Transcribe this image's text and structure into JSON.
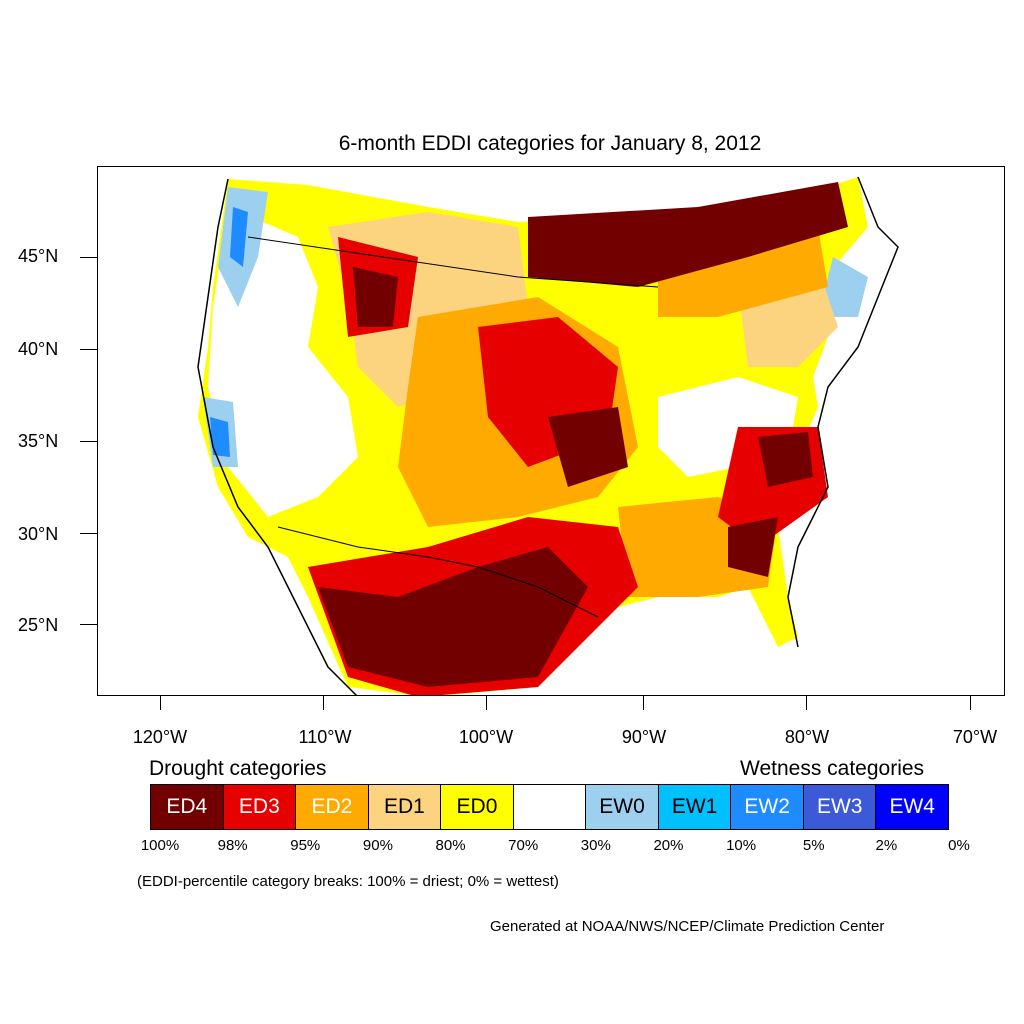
{
  "title": "6-month EDDI categories for January 8, 2012",
  "axes": {
    "lat_labels": [
      "45°N",
      "40°N",
      "35°N",
      "30°N",
      "25°N"
    ],
    "lon_labels": [
      "120°W",
      "110°W",
      "100°W",
      "90°W",
      "80°W",
      "70°W"
    ]
  },
  "legend": {
    "drought_heading": "Drought categories",
    "wetness_heading": "Wetness categories",
    "categories": [
      {
        "label": "ED4",
        "color": "#730000",
        "text_color": "#ffffff"
      },
      {
        "label": "ED3",
        "color": "#e60000",
        "text_color": "#ffffff"
      },
      {
        "label": "ED2",
        "color": "#ffaa00",
        "text_color": "#ffffff"
      },
      {
        "label": "ED1",
        "color": "#fcd37f",
        "text_color": "#000000"
      },
      {
        "label": "ED0",
        "color": "#ffff00",
        "text_color": "#000000"
      },
      {
        "label": "",
        "color": "#ffffff",
        "text_color": "#000000"
      },
      {
        "label": "EW0",
        "color": "#9dcfef",
        "text_color": "#000000"
      },
      {
        "label": "EW1",
        "color": "#00c0ff",
        "text_color": "#000000"
      },
      {
        "label": "EW2",
        "color": "#1e8cff",
        "text_color": "#ffffff"
      },
      {
        "label": "EW3",
        "color": "#3c5ad8",
        "text_color": "#ffffff"
      },
      {
        "label": "EW4",
        "color": "#0000ff",
        "text_color": "#ffffff"
      }
    ],
    "breaks": [
      "100%",
      "98%",
      "95%",
      "90%",
      "80%",
      "70%",
      "30%",
      "20%",
      "10%",
      "5%",
      "2%",
      "0%"
    ]
  },
  "note": "(EDDI-percentile category breaks: 100% = driest; 0% = wettest)",
  "credit": "Generated at NOAA/NWS/NCEP/Climate Prediction Center"
}
